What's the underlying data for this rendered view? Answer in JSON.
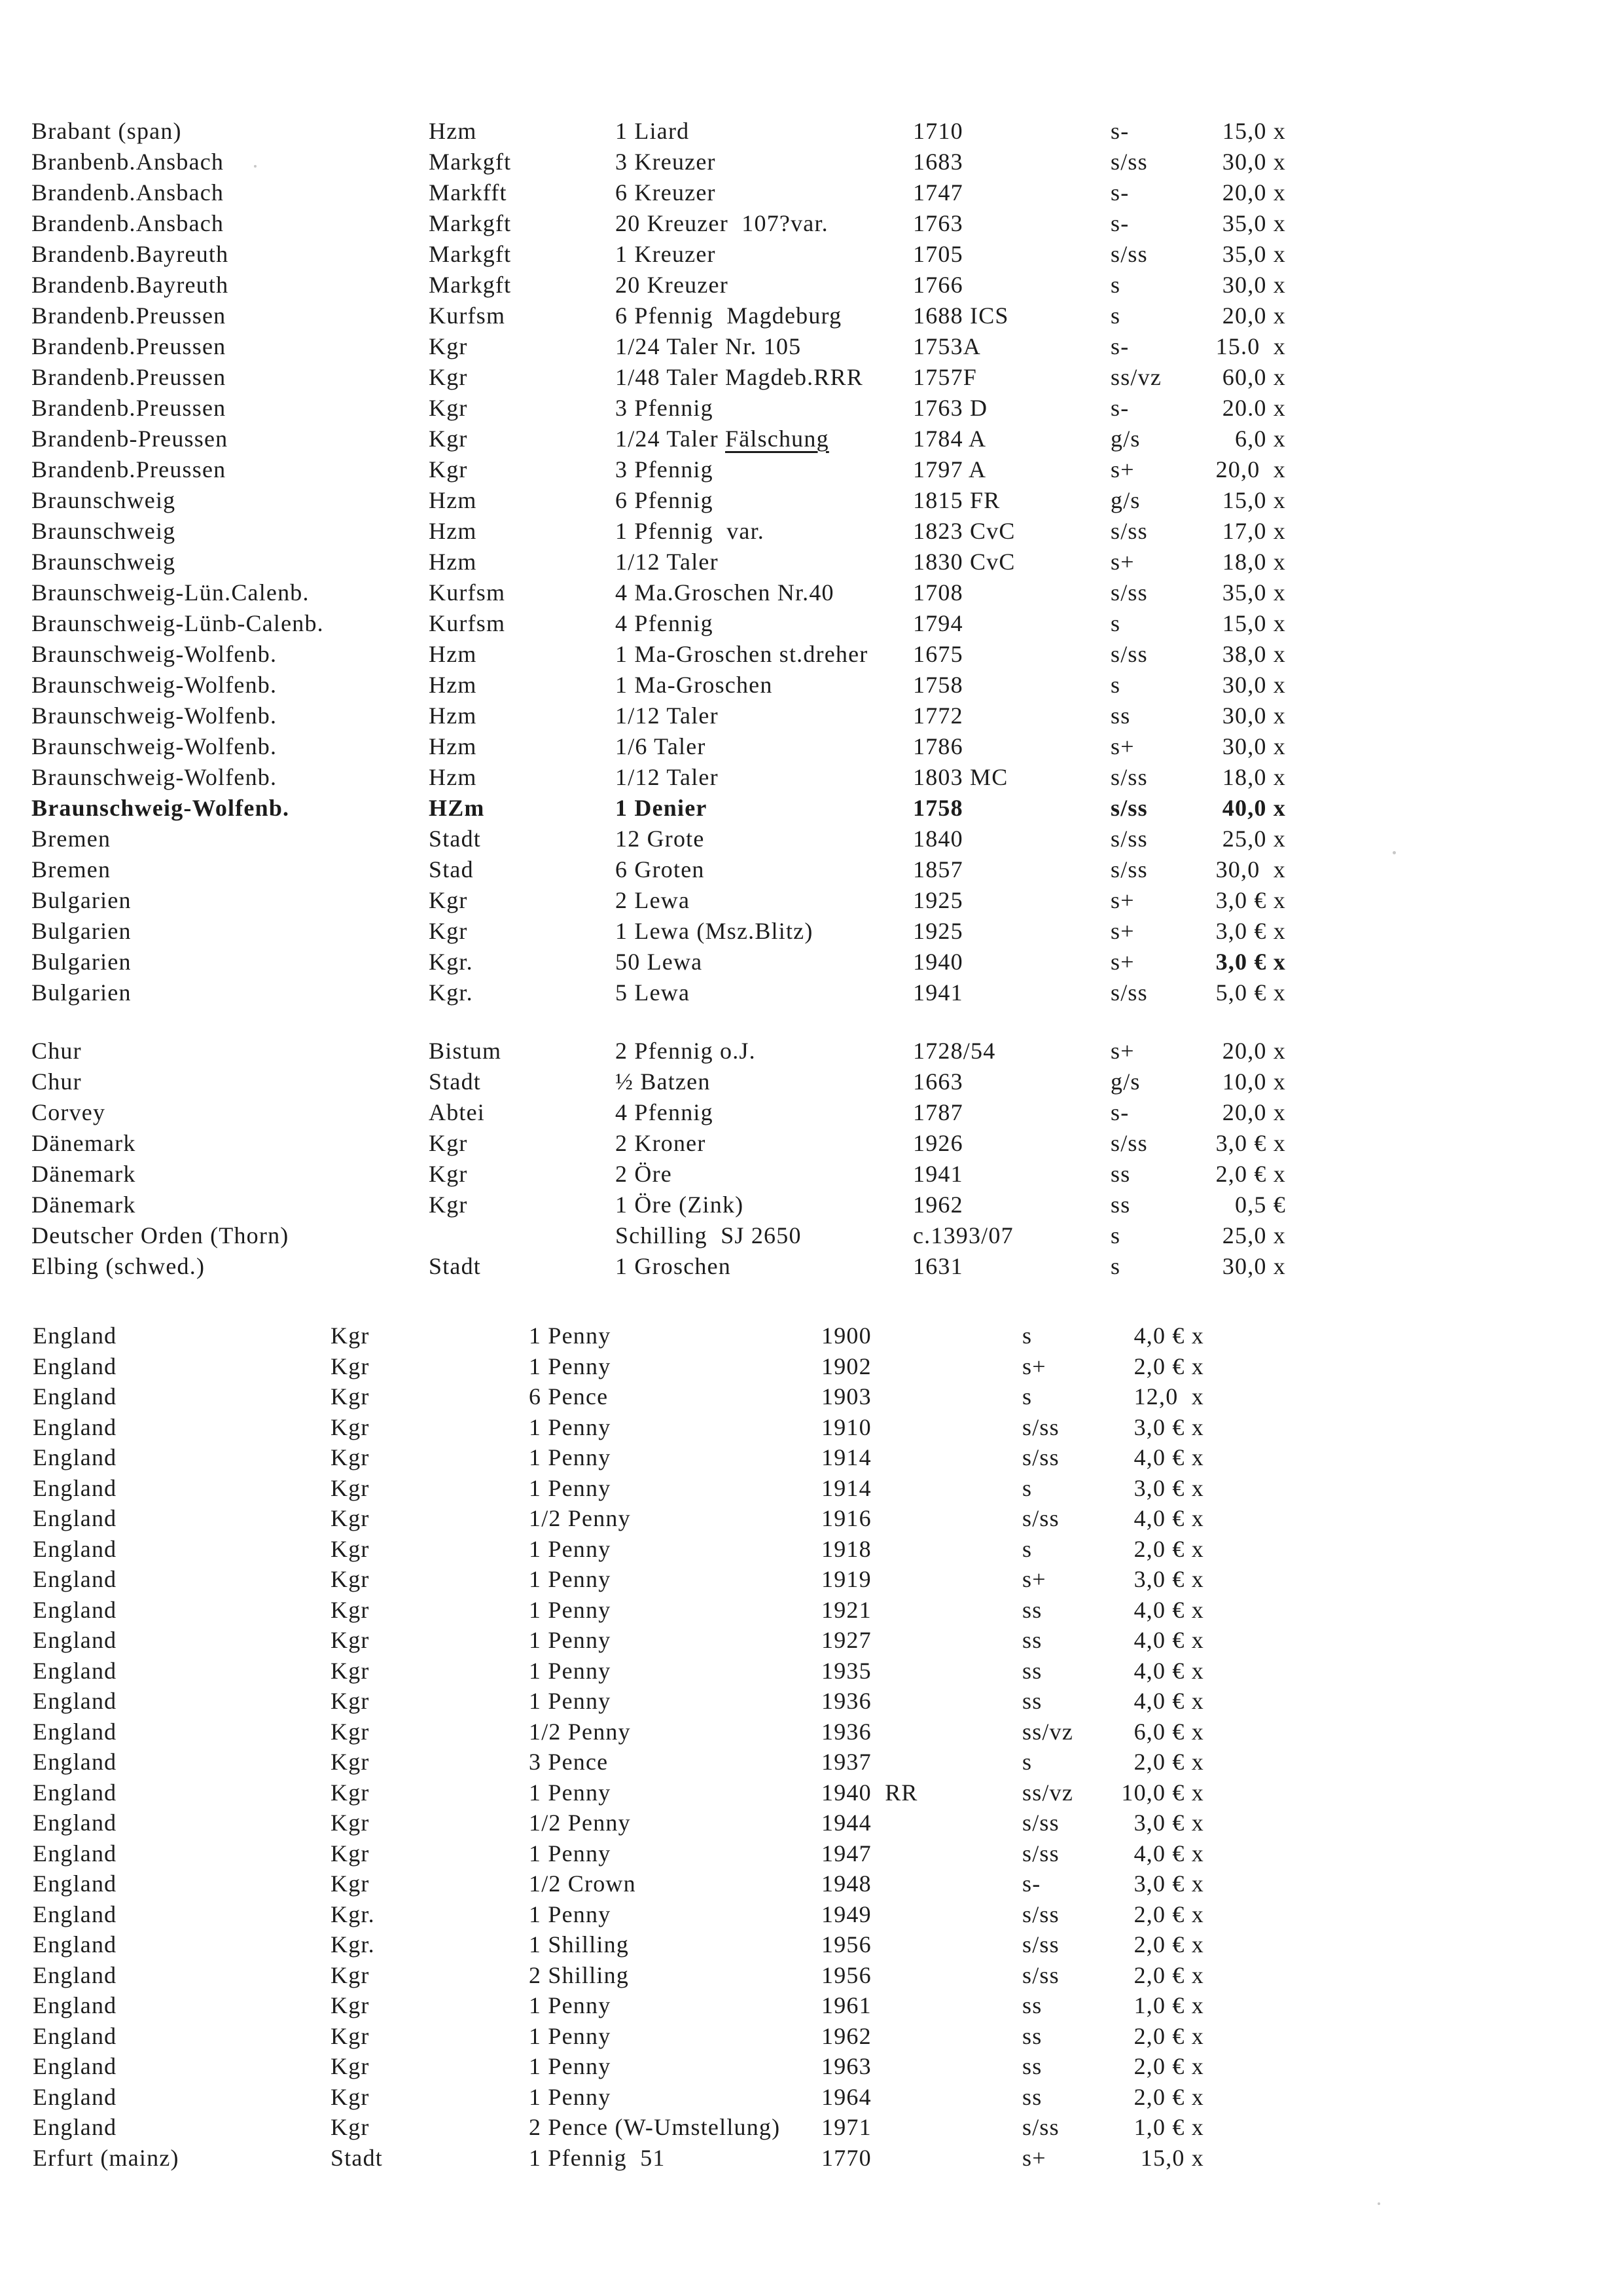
{
  "colors": {
    "paper": "#ffffff",
    "ink": "#1c1c1c"
  },
  "sections": [
    {
      "id": "a",
      "rows": [
        [
          "Brabant (span)",
          "Hzm",
          "1 Liard",
          "1710",
          "s-",
          "15,0 x"
        ],
        [
          "Branbenb.Ansbach",
          "Markgft",
          "3 Kreuzer",
          "1683",
          "s/ss",
          "30,0 x"
        ],
        [
          "Brandenb.Ansbach",
          "Markfft",
          "6 Kreuzer",
          "1747",
          "s-",
          "20,0 x"
        ],
        [
          "Brandenb.Ansbach",
          "Markgft",
          "20 Kreuzer  107?var.",
          "1763",
          "s-",
          "35,0 x"
        ],
        [
          "Brandenb.Bayreuth",
          "Markgft",
          "1 Kreuzer",
          "1705",
          "s/ss",
          "35,0 x"
        ],
        [
          "Brandenb.Bayreuth",
          "Markgft",
          "20 Kreuzer",
          "1766",
          "s",
          "30,0 x"
        ],
        [
          "Brandenb.Preussen",
          "Kurfsm",
          "6 Pfennig  Magdeburg",
          "1688 ICS",
          "s",
          "20,0 x"
        ],
        [
          "Brandenb.Preussen",
          "Kgr",
          "1/24 Taler Nr. 105",
          "1753A",
          "s-",
          "15.0  x"
        ],
        [
          "Brandenb.Preussen",
          "Kgr",
          "1/48 Taler Magdeb.RRR",
          "1757F",
          "ss/vz",
          "60,0 x"
        ],
        [
          "Brandenb.Preussen",
          "Kgr",
          "3 Pfennig",
          "1763 D",
          "s-",
          "20.0 x"
        ],
        [
          "Brandenb-Preussen",
          "Kgr",
          "1/24 Taler Fälschung",
          "1784 A",
          "g/s",
          "6,0 x",
          {
            "u": "Fälschung"
          }
        ],
        [
          "Brandenb.Preussen",
          "Kgr",
          "3 Pfennig",
          "1797 A",
          "s+",
          "20,0  x"
        ],
        [
          "Braunschweig",
          "Hzm",
          "6 Pfennig",
          "1815 FR",
          "g/s",
          "15,0 x"
        ],
        [
          "Braunschweig",
          "Hzm",
          "1 Pfennig  var.",
          "1823 CvC",
          "s/ss",
          "17,0 x"
        ],
        [
          "Braunschweig",
          "Hzm",
          "1/12 Taler",
          "1830 CvC",
          "s+",
          "18,0 x"
        ],
        [
          "Braunschweig-Lün.Calenb.",
          "Kurfsm",
          "4 Ma.Groschen Nr.40",
          "1708",
          "s/ss",
          "35,0 x"
        ],
        [
          "Braunschweig-Lünb-Calenb.",
          "Kurfsm",
          "4 Pfennig",
          "1794",
          "s",
          "15,0 x"
        ],
        [
          "Braunschweig-Wolfenb.",
          "Hzm",
          "1 Ma-Groschen st.dreher",
          "1675",
          "s/ss",
          "38,0 x"
        ],
        [
          "Braunschweig-Wolfenb.",
          "Hzm",
          "1 Ma-Groschen",
          "1758",
          "s",
          "30,0 x"
        ],
        [
          "Braunschweig-Wolfenb.",
          "Hzm",
          "1/12 Taler",
          "1772",
          "ss",
          "30,0 x"
        ],
        [
          "Braunschweig-Wolfenb.",
          "Hzm",
          "1/6 Taler",
          "1786",
          "s+",
          "30,0 x"
        ],
        [
          "Braunschweig-Wolfenb.",
          "Hzm",
          "1/12 Taler",
          "1803 MC",
          "s/ss",
          "18,0 x"
        ],
        [
          "Braunschweig-Wolfenb.",
          "HZm",
          "1 Denier",
          "1758",
          "s/ss",
          "40,0 x",
          {
            "bold": true
          }
        ],
        [
          "Bremen",
          "Stadt",
          "12 Grote",
          "1840",
          "s/ss",
          "25,0 x"
        ],
        [
          "Bremen",
          "Stad",
          "6 Groten",
          "1857",
          "s/ss",
          "30,0  x"
        ],
        [
          "Bulgarien",
          "Kgr",
          "2 Lewa",
          "1925",
          "s+",
          "3,0 € x"
        ],
        [
          "Bulgarien",
          "Kgr",
          "1 Lewa (Msz.Blitz)",
          "1925",
          "s+",
          "3,0 € x"
        ],
        [
          "Bulgarien",
          "Kgr.",
          "50 Lewa",
          "1940",
          "s+",
          "3,0 € x",
          {
            "boldPrice": true
          }
        ],
        [
          "Bulgarien",
          "Kgr.",
          "5 Lewa",
          "1941",
          "s/ss",
          "5,0 € x"
        ],
        [
          "Chur",
          "Bistum",
          "2 Pfennig o.J.",
          "1728/54",
          "s+",
          "20,0 x",
          {
            "gap": 42
          }
        ],
        [
          "Chur",
          "Stadt",
          "½ Batzen",
          "1663",
          "g/s",
          "10,0 x"
        ],
        [
          "Corvey",
          "Abtei",
          "4 Pfennig",
          "1787",
          "s-",
          "20,0 x"
        ],
        [
          "Dänemark",
          "Kgr",
          "2 Kroner",
          "1926",
          "s/ss",
          "3,0 € x"
        ],
        [
          "Dänemark",
          "Kgr",
          "2 Öre",
          "1941",
          "ss",
          "2,0 € x"
        ],
        [
          "Dänemark",
          "Kgr",
          "1 Öre (Zink)",
          "1962",
          "ss",
          "0,5 €"
        ],
        [
          "Deutscher Orden (Thorn)",
          "",
          "Schilling  SJ 2650",
          "c.1393/07",
          "s",
          "25,0 x"
        ],
        [
          "Elbing (schwed.)",
          "Stadt",
          "1 Groschen",
          "1631",
          "s",
          "30,0 x"
        ]
      ]
    },
    {
      "id": "b",
      "rows": [
        [
          "England",
          "Kgr",
          "1 Penny",
          "1900",
          "s",
          "4,0 € x"
        ],
        [
          "England",
          "Kgr",
          "1 Penny",
          "1902",
          "s+",
          "2,0 € x"
        ],
        [
          "England",
          "Kgr",
          "6 Pence",
          "1903",
          "s",
          "12,0  x"
        ],
        [
          "England",
          "Kgr",
          "1 Penny",
          "1910",
          "s/ss",
          "3,0 € x"
        ],
        [
          "England",
          "Kgr",
          "1 Penny",
          "1914",
          "s/ss",
          "4,0 € x"
        ],
        [
          "England",
          "Kgr",
          "1 Penny",
          "1914",
          "s",
          "3,0 € x"
        ],
        [
          "England",
          "Kgr",
          "1/2 Penny",
          "1916",
          "s/ss",
          "4,0 € x"
        ],
        [
          "England",
          "Kgr",
          "1 Penny",
          "1918",
          "s",
          "2,0 € x"
        ],
        [
          "England",
          "Kgr",
          "1 Penny",
          "1919",
          "s+",
          "3,0 € x"
        ],
        [
          "England",
          "Kgr",
          "1 Penny",
          "1921",
          "ss",
          "4,0 € x"
        ],
        [
          "England",
          "Kgr",
          "1 Penny",
          "1927",
          "ss",
          "4,0 € x"
        ],
        [
          "England",
          "Kgr",
          "1 Penny",
          "1935",
          "ss",
          "4,0 € x"
        ],
        [
          "England",
          "Kgr",
          "1 Penny",
          "1936",
          "ss",
          "4,0 € x"
        ],
        [
          "England",
          "Kgr",
          "1/2 Penny",
          "1936",
          "ss/vz",
          "6,0 € x"
        ],
        [
          "England",
          "Kgr",
          "3 Pence",
          "1937",
          "s",
          "2,0 € x"
        ],
        [
          "England",
          "Kgr",
          "1 Penny",
          "1940  RR",
          "ss/vz",
          "10,0 € x"
        ],
        [
          "England",
          "Kgr",
          "1/2 Penny",
          "1944",
          "s/ss",
          "3,0 € x"
        ],
        [
          "England",
          "Kgr",
          "1 Penny",
          "1947",
          "s/ss",
          "4,0 € x"
        ],
        [
          "England",
          "Kgr",
          "1/2 Crown",
          "1948",
          "s-",
          "3,0 € x"
        ],
        [
          "England",
          "Kgr.",
          "1 Penny",
          "1949",
          "s/ss",
          "2,0 € x"
        ],
        [
          "England",
          "Kgr.",
          "1 Shilling",
          "1956",
          "s/ss",
          "2,0 € x"
        ],
        [
          "England",
          "Kgr",
          "2 Shilling",
          "1956",
          "s/ss",
          "2,0 € x"
        ],
        [
          "England",
          "Kgr",
          "1 Penny",
          "1961",
          "ss",
          "1,0 € x"
        ],
        [
          "England",
          "Kgr",
          "1 Penny",
          "1962",
          "ss",
          "2,0 € x"
        ],
        [
          "England",
          "Kgr",
          "1 Penny",
          "1963",
          "ss",
          "2,0 € x"
        ],
        [
          "England",
          "Kgr",
          "1 Penny",
          "1964",
          "ss",
          "2,0 € x"
        ],
        [
          "England",
          "Kgr",
          "2 Pence (W-Umstellung)",
          "1971",
          "s/ss",
          "1,0 € x"
        ],
        [
          "Erfurt (mainz)",
          "Stadt",
          "1 Pfennig  51",
          "1770",
          "s+",
          "15,0 x"
        ]
      ]
    }
  ]
}
